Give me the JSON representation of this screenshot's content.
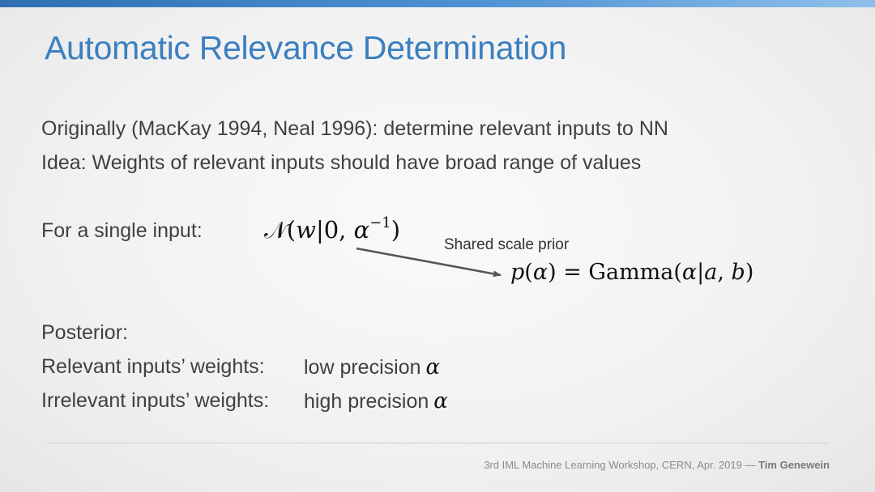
{
  "slide": {
    "title": "Automatic Relevance Determination",
    "lines": {
      "originally": "Originally (MacKay 1994, Neal 1996): determine relevant inputs to NN",
      "idea": "Idea: Weights of relevant inputs should have broad range of values",
      "single_input": "For a single input:",
      "posterior": "Posterior:",
      "relevant_label": "Relevant inputs’ weights:",
      "relevant_value": "low precision",
      "irrelevant_label": "Irrelevant inputs’ weights:",
      "irrelevant_value": "high precision"
    },
    "equations": {
      "prior_w": "𝒩(w|0, α⁻¹)",
      "prior_alpha": "p(α) = Gamma(α|a, b)",
      "alpha_symbol": "α"
    },
    "annotation": "Shared scale prior",
    "footer": {
      "text": "3rd IML Machine Learning Workshop, CERN, Apr. 2019 — ",
      "author": "Tim Genewein"
    },
    "colors": {
      "title": "#3b7fc0",
      "body_text": "#404040",
      "top_bar_start": "#2f6fb2",
      "top_bar_end": "#8fc0ea",
      "arrow": "#555555"
    }
  }
}
